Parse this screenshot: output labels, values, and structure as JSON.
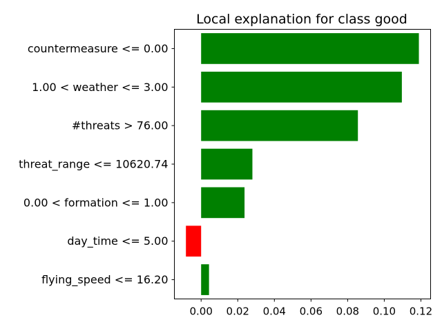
{
  "chart_data": {
    "type": "bar",
    "orientation": "horizontal",
    "title": "Local explanation for class good",
    "xlabel": "",
    "ylabel": "",
    "categories": [
      "countermeasure <= 0.00",
      "1.00 < weather <= 3.00",
      "#threats > 76.00",
      "threat_range <= 10620.74",
      "0.00 < formation <= 1.00",
      "day_time <= 5.00",
      "flying_speed <= 16.20"
    ],
    "values": [
      0.1189,
      0.1096,
      0.0856,
      0.028,
      0.0237,
      -0.0083,
      0.0043
    ],
    "xlim": [
      -0.0146,
      0.1253
    ],
    "xticks": [
      0.0,
      0.02,
      0.04,
      0.06,
      0.08,
      0.1,
      0.12
    ],
    "xtick_labels": [
      "0.00",
      "0.02",
      "0.04",
      "0.06",
      "0.08",
      "0.10",
      "0.12"
    ],
    "grid": false,
    "colors": {
      "positive": "#008000",
      "negative": "#ff0000",
      "axis": "#000000"
    }
  }
}
